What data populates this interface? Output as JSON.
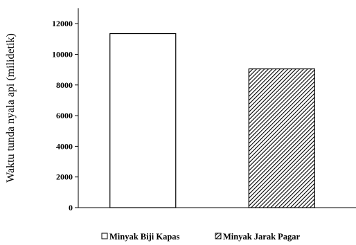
{
  "chart_data": {
    "type": "bar",
    "categories": [
      "Minyak Biji Kapas",
      "Minyak Jarak Pagar"
    ],
    "values": [
      11350,
      9050
    ],
    "title": "",
    "xlabel": "",
    "ylabel": "Waktu tunda nyala api (milidetik)",
    "ylim": [
      0,
      13000
    ],
    "yticks": [
      0,
      2000,
      4000,
      6000,
      8000,
      10000,
      12000
    ],
    "grid": false,
    "legend_position": "bottom",
    "series_styles": [
      {
        "fill": "#ffffff",
        "pattern": "none",
        "stroke": "#000000"
      },
      {
        "fill": "#ffffff",
        "pattern": "diagonal-hatch",
        "stroke": "#000000"
      }
    ]
  }
}
